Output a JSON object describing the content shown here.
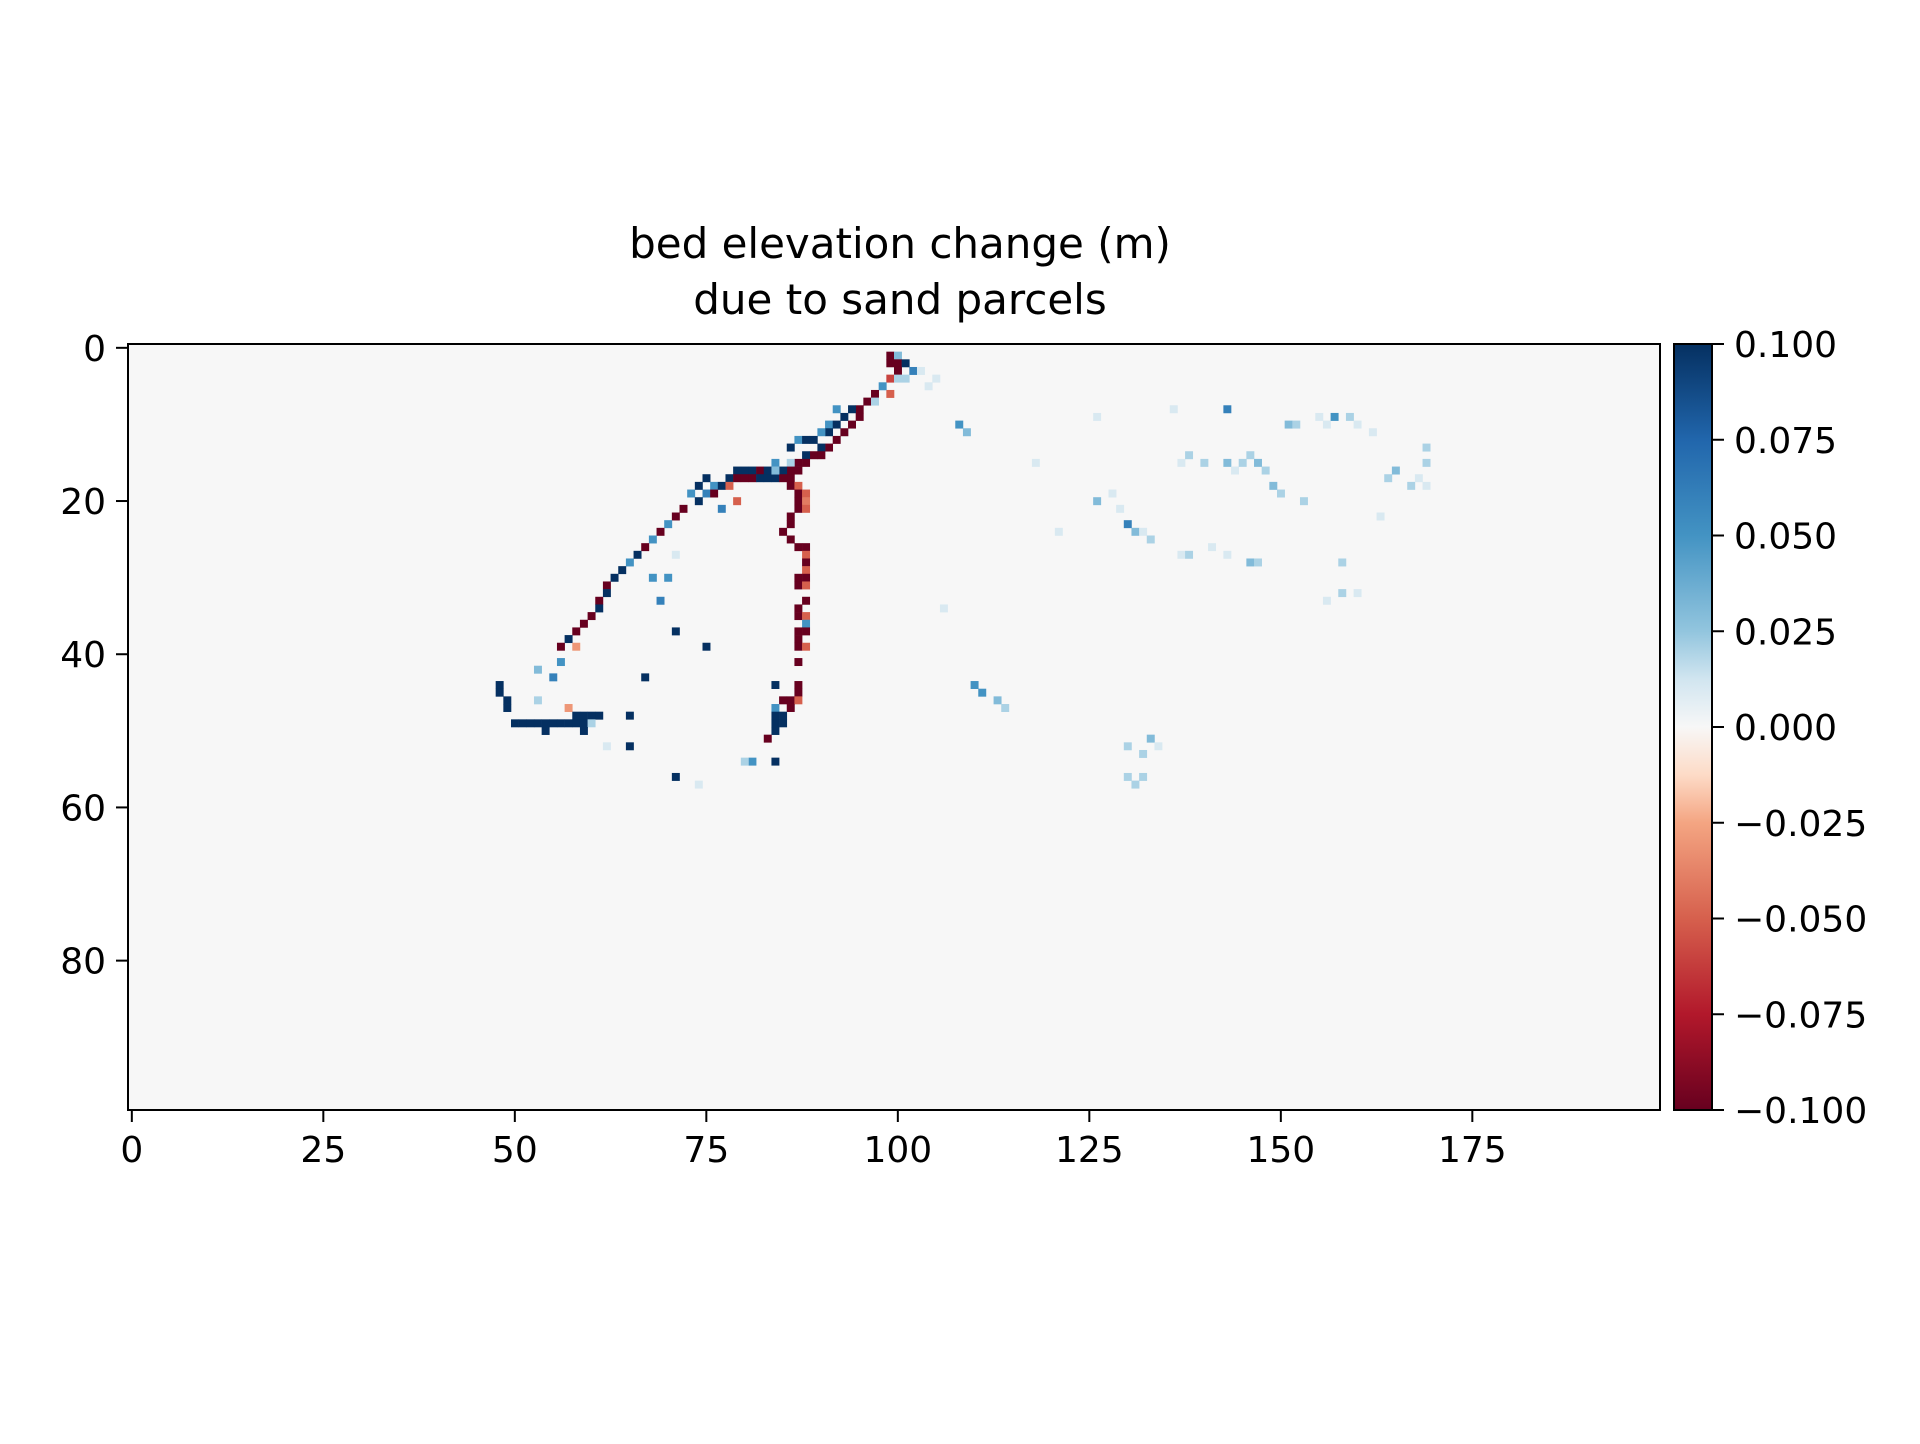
{
  "chart_data": {
    "type": "heatmap",
    "title_lines": [
      "bed elevation change (m)",
      "due to sand parcels"
    ],
    "xlabel": "",
    "ylabel": "",
    "x_ticks": [
      0,
      25,
      50,
      75,
      100,
      125,
      150,
      175
    ],
    "y_ticks": [
      0,
      20,
      40,
      60,
      80
    ],
    "xlim": [
      -0.5,
      199.5
    ],
    "ylim": [
      99.5,
      -0.5
    ],
    "grid_shape": [
      100,
      200
    ],
    "y_axis_inverted": true,
    "colormap": "RdBu",
    "colorbar": {
      "vmin": -0.1,
      "vmax": 0.1,
      "ticks": [
        0.1,
        0.075,
        0.05,
        0.025,
        0.0,
        -0.025,
        -0.05,
        -0.075,
        -0.1
      ],
      "tick_labels": [
        "0.100",
        "0.075",
        "0.050",
        "0.025",
        "0.000",
        "−0.025",
        "−0.050",
        "−0.075",
        "−0.100"
      ],
      "stops": [
        {
          "v": -0.1,
          "color": "#67001f"
        },
        {
          "v": -0.075,
          "color": "#b2182b"
        },
        {
          "v": -0.05,
          "color": "#d6604d"
        },
        {
          "v": -0.025,
          "color": "#f4a582"
        },
        {
          "v": -0.0125,
          "color": "#fddbc7"
        },
        {
          "v": 0.0,
          "color": "#f7f7f7"
        },
        {
          "v": 0.0125,
          "color": "#d1e5f0"
        },
        {
          "v": 0.025,
          "color": "#92c5de"
        },
        {
          "v": 0.05,
          "color": "#4393c3"
        },
        {
          "v": 0.075,
          "color": "#2166ac"
        },
        {
          "v": 0.1,
          "color": "#053061"
        }
      ]
    },
    "background_value": 0.0,
    "cells": [
      [
        99,
        1,
        -0.1
      ],
      [
        100,
        1,
        0.03
      ],
      [
        99,
        2,
        -0.1
      ],
      [
        100,
        2,
        -0.1
      ],
      [
        101,
        2,
        0.1
      ],
      [
        100,
        3,
        -0.1
      ],
      [
        102,
        3,
        0.06
      ],
      [
        103,
        3,
        0.01
      ],
      [
        99,
        4,
        -0.06
      ],
      [
        100,
        4,
        0.02
      ],
      [
        101,
        4,
        0.02
      ],
      [
        104,
        5,
        0.01
      ],
      [
        98,
        5,
        0.05
      ],
      [
        97,
        6,
        -0.1
      ],
      [
        99,
        6,
        -0.05
      ],
      [
        96,
        7,
        -0.1
      ],
      [
        97,
        7,
        0.02
      ],
      [
        95,
        8,
        -0.1
      ],
      [
        94,
        8,
        0.1
      ],
      [
        92,
        8,
        0.05
      ],
      [
        93,
        9,
        0.1
      ],
      [
        95,
        9,
        -0.1
      ],
      [
        91,
        10,
        0.05
      ],
      [
        94,
        10,
        -0.1
      ],
      [
        92,
        10,
        0.1
      ],
      [
        91,
        11,
        0.1
      ],
      [
        93,
        11,
        -0.1
      ],
      [
        90,
        11,
        0.05
      ],
      [
        89,
        12,
        0.1
      ],
      [
        92,
        12,
        -0.1
      ],
      [
        87,
        12,
        0.05
      ],
      [
        88,
        12,
        0.1
      ],
      [
        91,
        13,
        -0.1
      ],
      [
        90,
        13,
        0.1
      ],
      [
        86,
        13,
        0.1
      ],
      [
        89,
        14,
        -0.1
      ],
      [
        88,
        14,
        0.1
      ],
      [
        90,
        14,
        -0.1
      ],
      [
        87,
        15,
        -0.1
      ],
      [
        88,
        15,
        -0.1
      ],
      [
        84,
        15,
        0.05
      ],
      [
        86,
        15,
        0.02
      ],
      [
        86,
        16,
        -0.1
      ],
      [
        87,
        16,
        -0.1
      ],
      [
        85,
        16,
        0.1
      ],
      [
        86,
        17,
        -0.1
      ],
      [
        80,
        16,
        0.1
      ],
      [
        81,
        16,
        0.1
      ],
      [
        82,
        16,
        -0.1
      ],
      [
        83,
        16,
        0.1
      ],
      [
        79,
        16,
        0.1
      ],
      [
        78,
        17,
        0.1
      ],
      [
        79,
        17,
        -0.1
      ],
      [
        80,
        17,
        -0.1
      ],
      [
        81,
        17,
        -0.1
      ],
      [
        82,
        17,
        0.1
      ],
      [
        83,
        17,
        0.1
      ],
      [
        84,
        17,
        0.1
      ],
      [
        85,
        17,
        -0.1
      ],
      [
        84,
        16,
        0.03
      ],
      [
        86,
        18,
        -0.1
      ],
      [
        87,
        18,
        -0.05
      ],
      [
        75,
        17,
        0.1
      ],
      [
        76,
        18,
        0.05
      ],
      [
        77,
        18,
        0.1
      ],
      [
        78,
        18,
        -0.05
      ],
      [
        87,
        19,
        -0.1
      ],
      [
        88,
        19,
        -0.05
      ],
      [
        74,
        18,
        0.1
      ],
      [
        75,
        19,
        0.06
      ],
      [
        76,
        19,
        -0.1
      ],
      [
        87,
        20,
        -0.1
      ],
      [
        88,
        20,
        -0.04
      ],
      [
        73,
        19,
        0.05
      ],
      [
        74,
        20,
        0.1
      ],
      [
        79,
        20,
        -0.05
      ],
      [
        77,
        21,
        0.06
      ],
      [
        72,
        21,
        -0.1
      ],
      [
        87,
        21,
        -0.1
      ],
      [
        88,
        21,
        -0.05
      ],
      [
        86,
        22,
        -0.1
      ],
      [
        71,
        22,
        -0.1
      ],
      [
        70,
        23,
        0.05
      ],
      [
        86,
        23,
        -0.1
      ],
      [
        69,
        24,
        -0.1
      ],
      [
        85,
        24,
        -0.1
      ],
      [
        86,
        25,
        -0.1
      ],
      [
        68,
        25,
        0.05
      ],
      [
        87,
        26,
        -0.1
      ],
      [
        88,
        26,
        -0.1
      ],
      [
        67,
        26,
        -0.1
      ],
      [
        66,
        27,
        0.1
      ],
      [
        88,
        27,
        -0.05
      ],
      [
        71,
        27,
        0.01
      ],
      [
        65,
        28,
        0.05
      ],
      [
        88,
        28,
        -0.1
      ],
      [
        64,
        29,
        0.1
      ],
      [
        88,
        29,
        -0.05
      ],
      [
        68,
        30,
        0.05
      ],
      [
        70,
        30,
        0.05
      ],
      [
        63,
        30,
        0.1
      ],
      [
        87,
        30,
        -0.1
      ],
      [
        88,
        30,
        -0.1
      ],
      [
        62,
        31,
        -0.1
      ],
      [
        87,
        31,
        -0.1
      ],
      [
        88,
        31,
        -0.05
      ],
      [
        62,
        32,
        0.1
      ],
      [
        61,
        33,
        -0.1
      ],
      [
        88,
        33,
        -0.1
      ],
      [
        69,
        33,
        0.06
      ],
      [
        61,
        34,
        0.1
      ],
      [
        87,
        34,
        -0.1
      ],
      [
        60,
        35,
        -0.1
      ],
      [
        87,
        35,
        -0.1
      ],
      [
        88,
        35,
        -0.05
      ],
      [
        59,
        36,
        -0.1
      ],
      [
        88,
        36,
        0.05
      ],
      [
        58,
        37,
        -0.1
      ],
      [
        87,
        37,
        -0.1
      ],
      [
        88,
        37,
        -0.1
      ],
      [
        71,
        37,
        0.1
      ],
      [
        57,
        38,
        0.1
      ],
      [
        87,
        38,
        -0.1
      ],
      [
        58,
        39,
        -0.03
      ],
      [
        56,
        39,
        -0.1
      ],
      [
        87,
        39,
        -0.1
      ],
      [
        88,
        39,
        -0.05
      ],
      [
        75,
        39,
        0.1
      ],
      [
        56,
        41,
        0.05
      ],
      [
        87,
        41,
        -0.1
      ],
      [
        53,
        42,
        0.03
      ],
      [
        55,
        43,
        0.06
      ],
      [
        67,
        43,
        0.1
      ],
      [
        84,
        44,
        0.1
      ],
      [
        87,
        44,
        -0.1
      ],
      [
        48,
        44,
        0.1
      ],
      [
        48,
        45,
        0.1
      ],
      [
        87,
        45,
        -0.1
      ],
      [
        86,
        46,
        -0.1
      ],
      [
        87,
        46,
        -0.05
      ],
      [
        49,
        46,
        0.1
      ],
      [
        53,
        46,
        0.02
      ],
      [
        85,
        46,
        -0.1
      ],
      [
        86,
        47,
        -0.1
      ],
      [
        49,
        47,
        0.1
      ],
      [
        84,
        47,
        0.05
      ],
      [
        57,
        47,
        -0.03
      ],
      [
        84,
        48,
        0.1
      ],
      [
        85,
        48,
        0.1
      ],
      [
        58,
        48,
        0.1
      ],
      [
        59,
        48,
        0.1
      ],
      [
        60,
        48,
        0.1
      ],
      [
        61,
        48,
        0.1
      ],
      [
        65,
        48,
        0.1
      ],
      [
        50,
        49,
        0.1
      ],
      [
        51,
        49,
        0.1
      ],
      [
        52,
        49,
        0.1
      ],
      [
        53,
        49,
        0.1
      ],
      [
        54,
        49,
        0.1
      ],
      [
        55,
        49,
        0.1
      ],
      [
        56,
        49,
        0.1
      ],
      [
        57,
        49,
        0.1
      ],
      [
        58,
        49,
        0.1
      ],
      [
        59,
        49,
        0.1
      ],
      [
        84,
        49,
        0.1
      ],
      [
        85,
        49,
        0.1
      ],
      [
        60,
        49,
        0.02
      ],
      [
        84,
        50,
        0.1
      ],
      [
        54,
        50,
        0.1
      ],
      [
        59,
        50,
        0.1
      ],
      [
        83,
        51,
        -0.1
      ],
      [
        65,
        52,
        0.1
      ],
      [
        62,
        52,
        0.01
      ],
      [
        81,
        54,
        0.05
      ],
      [
        84,
        54,
        0.1
      ],
      [
        80,
        54,
        0.02
      ],
      [
        71,
        56,
        0.1
      ],
      [
        74,
        57,
        0.01
      ],
      [
        108,
        10,
        0.05
      ],
      [
        109,
        11,
        0.03
      ],
      [
        118,
        15,
        0.01
      ],
      [
        126,
        9,
        0.01
      ],
      [
        126,
        20,
        0.03
      ],
      [
        128,
        19,
        0.01
      ],
      [
        129,
        21,
        0.01
      ],
      [
        130,
        23,
        0.06
      ],
      [
        131,
        24,
        0.03
      ],
      [
        132,
        24,
        0.01
      ],
      [
        133,
        25,
        0.02
      ],
      [
        136,
        8,
        0.01
      ],
      [
        137,
        15,
        0.01
      ],
      [
        138,
        14,
        0.02
      ],
      [
        140,
        15,
        0.02
      ],
      [
        143,
        8,
        0.06
      ],
      [
        143,
        15,
        0.03
      ],
      [
        144,
        16,
        0.01
      ],
      [
        145,
        15,
        0.02
      ],
      [
        146,
        14,
        0.02
      ],
      [
        147,
        15,
        0.03
      ],
      [
        148,
        16,
        0.02
      ],
      [
        149,
        18,
        0.03
      ],
      [
        150,
        19,
        0.02
      ],
      [
        151,
        10,
        0.03
      ],
      [
        152,
        10,
        0.02
      ],
      [
        153,
        20,
        0.02
      ],
      [
        155,
        9,
        0.01
      ],
      [
        156,
        10,
        0.01
      ],
      [
        157,
        9,
        0.05
      ],
      [
        159,
        9,
        0.02
      ],
      [
        160,
        10,
        0.01
      ],
      [
        162,
        11,
        0.01
      ],
      [
        164,
        17,
        0.02
      ],
      [
        165,
        16,
        0.03
      ],
      [
        167,
        18,
        0.02
      ],
      [
        168,
        17,
        0.01
      ],
      [
        169,
        13,
        0.02
      ],
      [
        169,
        15,
        0.02
      ],
      [
        169,
        18,
        0.01
      ],
      [
        137,
        27,
        0.01
      ],
      [
        138,
        27,
        0.02
      ],
      [
        141,
        26,
        0.01
      ],
      [
        143,
        27,
        0.01
      ],
      [
        146,
        28,
        0.03
      ],
      [
        147,
        28,
        0.02
      ],
      [
        158,
        28,
        0.02
      ],
      [
        156,
        33,
        0.01
      ],
      [
        158,
        32,
        0.02
      ],
      [
        110,
        44,
        0.05
      ],
      [
        111,
        45,
        0.05
      ],
      [
        113,
        46,
        0.03
      ],
      [
        114,
        47,
        0.02
      ],
      [
        130,
        52,
        0.02
      ],
      [
        132,
        53,
        0.02
      ],
      [
        133,
        51,
        0.03
      ],
      [
        134,
        52,
        0.01
      ],
      [
        130,
        56,
        0.02
      ],
      [
        131,
        57,
        0.02
      ],
      [
        132,
        56,
        0.02
      ],
      [
        105,
        4,
        0.01
      ],
      [
        121,
        24,
        0.01
      ],
      [
        106,
        34,
        0.01
      ],
      [
        160,
        32,
        0.01
      ],
      [
        163,
        22,
        0.01
      ]
    ]
  }
}
